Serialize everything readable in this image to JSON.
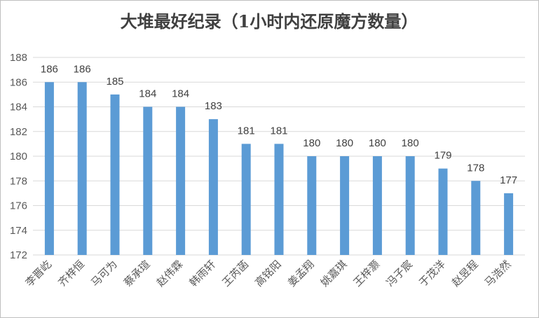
{
  "chart_data": {
    "type": "bar",
    "title": "大堆最好纪录（1小时内还原魔方数量）",
    "xlabel": "",
    "ylabel": "",
    "categories": [
      "李晋屹",
      "齐梓恒",
      "马可为",
      "蔡承瑄",
      "赵伟霖",
      "韩雨轩",
      "王芮菡",
      "高铭阳",
      "姜孟翔",
      "姚嘉琪",
      "王梓灏",
      "冯子宸",
      "于茂洋",
      "赵昱程",
      "马浩然"
    ],
    "values": [
      186,
      186,
      185,
      184,
      184,
      183,
      181,
      181,
      180,
      180,
      180,
      180,
      179,
      178,
      177
    ],
    "ylim": [
      172,
      188
    ],
    "yticks": [
      172,
      174,
      176,
      178,
      180,
      182,
      184,
      186,
      188
    ],
    "grid": true,
    "legend": "none",
    "bar_color": "#5b9bd5"
  }
}
